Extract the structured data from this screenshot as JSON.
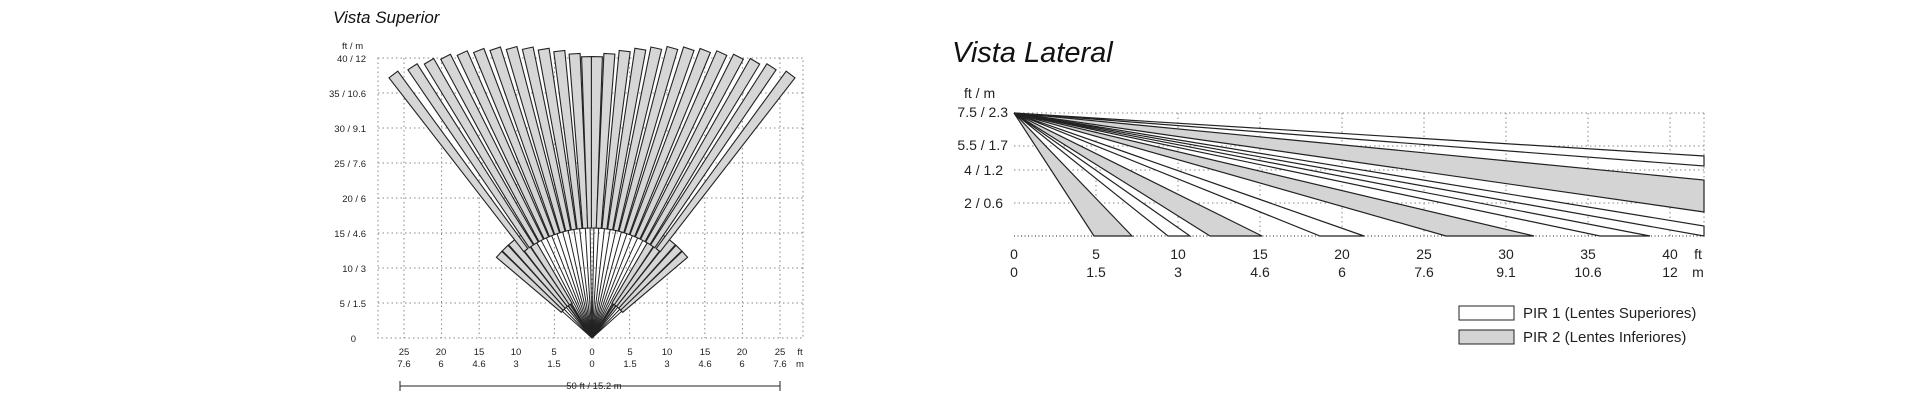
{
  "top_view": {
    "title": "Vista Superior",
    "unit_label": "ft / m",
    "y_ticks": [
      "40 / 12",
      "35 / 10.6",
      "30 / 9.1",
      "25 / 7.6",
      "20 / 6",
      "15 / 4.6",
      "10 / 3",
      "5 / 1.5",
      "0"
    ],
    "x_ticks_ft": [
      "25",
      "20",
      "15",
      "10",
      "5",
      "0",
      "5",
      "10",
      "15",
      "20",
      "25"
    ],
    "x_ticks_m": [
      "7.6",
      "6",
      "4.6",
      "3",
      "1.5",
      "0",
      "1.5",
      "3",
      "4.6",
      "6",
      "7.6"
    ],
    "x_unit_ft": "ft",
    "x_unit_m": "m",
    "width_label": "50 ft / 15.2 m",
    "long_beam_angles_deg": [
      -37,
      -33.5,
      -30.5,
      -27.5,
      -24.5,
      -21.5,
      -18.5,
      -15.5,
      -12.5,
      -9.5,
      -6.5,
      -3.5,
      -1,
      1,
      3.5,
      6.5,
      9.5,
      12.5,
      15.5,
      18.5,
      21.5,
      24.5,
      27.5,
      30.5,
      33.5,
      37
    ],
    "short_beam_angles_deg": [
      -48,
      -44,
      -40,
      -36,
      -32,
      32,
      36,
      40,
      44,
      48
    ]
  },
  "side_view": {
    "title": "Vista Lateral",
    "unit_label": "ft / m",
    "y_ticks": [
      "7.5 / 2.3",
      "5.5 / 1.7",
      "4 / 1.2",
      "2 / 0.6"
    ],
    "x_ticks_ft": [
      "0",
      "5",
      "10",
      "15",
      "20",
      "25",
      "30",
      "35",
      "40"
    ],
    "x_ticks_m": [
      "0",
      "1.5",
      "3",
      "4.6",
      "6",
      "7.6",
      "9.1",
      "10.6",
      "12"
    ],
    "x_unit_ft": "ft",
    "x_unit_m": "m",
    "legend": [
      {
        "label": "PIR 1 (Lentes Superiores)",
        "color": "#ffffff"
      },
      {
        "label": "PIR 2 (Lentes Inferiores)",
        "color": "#d4d4d4"
      }
    ],
    "colors": {
      "pir1": "#ffffff",
      "pir2": "#d4d4d4",
      "line": "#222222"
    }
  }
}
